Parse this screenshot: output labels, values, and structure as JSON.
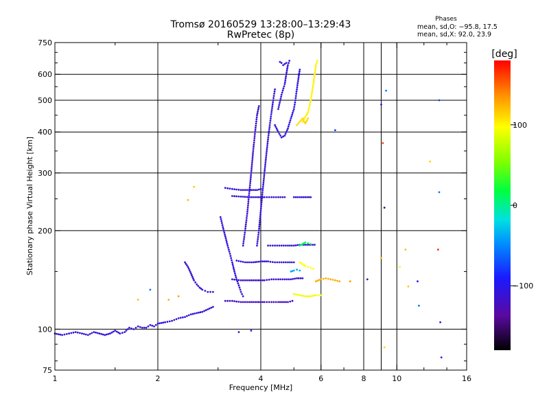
{
  "title_line1": "Tromsø 20160529 13:28:00–13:29:43",
  "title_line2": "RwPretec (8p)",
  "phases_box": {
    "heading": "Phases",
    "line_o": "mean, sd,O: −95.8, 17.5",
    "line_x": "mean, sd,X:  92.0, 23.9"
  },
  "colorbar": {
    "unit_label": "[deg]",
    "ticks": [
      {
        "value": 100,
        "label": "100"
      },
      {
        "value": 0,
        "label": "0"
      },
      {
        "value": -100,
        "label": "−100"
      }
    ],
    "range": [
      -180,
      180
    ]
  },
  "chart_data": {
    "type": "scatter",
    "xlabel": "Frequency [MHz]",
    "ylabel": "Stationary phase Virtual Height [km]",
    "xscale": "log",
    "yscale": "log",
    "xlim": [
      1,
      16
    ],
    "ylim": [
      75,
      750
    ],
    "grid": true,
    "x_ticks": [
      {
        "value": 1,
        "label": "1"
      },
      {
        "value": 2,
        "label": "2"
      },
      {
        "value": 4,
        "label": "4"
      },
      {
        "value": 6,
        "label": "6"
      },
      {
        "value": 8,
        "label": "8"
      },
      {
        "value": 9,
        "label": ""
      },
      {
        "value": 10,
        "label": "10"
      },
      {
        "value": 16,
        "label": "16"
      }
    ],
    "y_ticks": [
      {
        "value": 75,
        "label": "75"
      },
      {
        "value": 100,
        "label": "100"
      },
      {
        "value": 200,
        "label": "200"
      },
      {
        "value": 300,
        "label": "300"
      },
      {
        "value": 400,
        "label": "400"
      },
      {
        "value": 500,
        "label": "500"
      },
      {
        "value": 600,
        "label": "600"
      },
      {
        "value": 750,
        "label": "750"
      }
    ],
    "grid_x": [
      2,
      4,
      6,
      8,
      9,
      10
    ],
    "grid_y": [
      100,
      200,
      300,
      400,
      500,
      600
    ],
    "color_encoding": "phase_deg",
    "traces": [
      {
        "phase": -110,
        "points": [
          [
            1.0,
            97
          ],
          [
            1.05,
            96
          ],
          [
            1.1,
            97
          ],
          [
            1.15,
            98
          ],
          [
            1.2,
            97
          ],
          [
            1.25,
            96
          ],
          [
            1.3,
            98
          ],
          [
            1.35,
            97
          ],
          [
            1.4,
            96
          ],
          [
            1.45,
            97
          ],
          [
            1.5,
            99
          ],
          [
            1.55,
            97
          ],
          [
            1.6,
            98
          ],
          [
            1.65,
            101
          ],
          [
            1.7,
            100
          ],
          [
            1.75,
            102
          ],
          [
            1.8,
            101
          ],
          [
            1.85,
            101
          ],
          [
            1.9,
            103
          ],
          [
            1.95,
            102
          ],
          [
            2.0,
            104
          ],
          [
            2.1,
            105
          ],
          [
            2.2,
            106
          ],
          [
            2.3,
            108
          ],
          [
            2.4,
            109
          ],
          [
            2.5,
            111
          ],
          [
            2.6,
            112
          ],
          [
            2.7,
            113
          ],
          [
            2.8,
            115
          ],
          [
            2.9,
            117
          ]
        ]
      },
      {
        "phase": -115,
        "points": [
          [
            2.4,
            160
          ],
          [
            2.45,
            155
          ],
          [
            2.5,
            148
          ],
          [
            2.55,
            141
          ],
          [
            2.6,
            137
          ],
          [
            2.65,
            134
          ],
          [
            2.7,
            132
          ],
          [
            2.75,
            131
          ],
          [
            2.8,
            130
          ],
          [
            2.85,
            130
          ],
          [
            2.9,
            130
          ]
        ]
      },
      {
        "phase": -120,
        "points": [
          [
            3.15,
            122
          ],
          [
            3.3,
            122
          ],
          [
            3.5,
            121
          ],
          [
            3.7,
            121
          ],
          [
            3.9,
            121
          ],
          [
            4.1,
            121
          ],
          [
            4.3,
            121
          ],
          [
            4.5,
            121
          ],
          [
            4.8,
            121
          ],
          [
            4.95,
            122
          ]
        ]
      },
      {
        "phase": -115,
        "points": [
          [
            3.3,
            142
          ],
          [
            3.5,
            141
          ],
          [
            3.7,
            141
          ],
          [
            3.9,
            141
          ],
          [
            4.1,
            141
          ],
          [
            4.3,
            142
          ],
          [
            4.5,
            142
          ],
          [
            4.7,
            142
          ],
          [
            4.9,
            142
          ],
          [
            5.1,
            143
          ],
          [
            5.3,
            143
          ]
        ]
      },
      {
        "phase": -110,
        "points": [
          [
            3.4,
            162
          ],
          [
            3.6,
            160
          ],
          [
            3.8,
            160
          ],
          [
            4.0,
            161
          ],
          [
            4.2,
            161
          ],
          [
            4.4,
            160
          ],
          [
            4.6,
            160
          ],
          [
            4.8,
            160
          ],
          [
            5.0,
            160
          ]
        ]
      },
      {
        "phase": -110,
        "points": [
          [
            4.2,
            180
          ],
          [
            4.4,
            180
          ],
          [
            4.6,
            180
          ],
          [
            4.8,
            180
          ],
          [
            5.0,
            180
          ],
          [
            5.2,
            181
          ],
          [
            5.4,
            181
          ],
          [
            5.6,
            181
          ],
          [
            5.75,
            181
          ]
        ]
      },
      {
        "phase": -115,
        "points": [
          [
            3.3,
            255
          ],
          [
            3.5,
            254
          ],
          [
            3.7,
            253
          ],
          [
            3.9,
            253
          ],
          [
            4.1,
            253
          ],
          [
            4.3,
            253
          ],
          [
            4.5,
            253
          ],
          [
            4.7,
            253
          ]
        ]
      },
      {
        "phase": -110,
        "points": [
          [
            3.15,
            270
          ],
          [
            3.3,
            268
          ],
          [
            3.5,
            266
          ],
          [
            3.7,
            266
          ],
          [
            3.9,
            266
          ],
          [
            4.0,
            268
          ]
        ]
      },
      {
        "phase": -115,
        "points": [
          [
            5.0,
            253
          ],
          [
            5.2,
            253
          ],
          [
            5.4,
            253
          ],
          [
            5.6,
            253
          ]
        ]
      },
      {
        "phase": -110,
        "points": [
          [
            3.05,
            220
          ],
          [
            3.1,
            205
          ],
          [
            3.15,
            192
          ],
          [
            3.2,
            180
          ],
          [
            3.25,
            170
          ],
          [
            3.3,
            160
          ],
          [
            3.35,
            150
          ],
          [
            3.4,
            142
          ],
          [
            3.45,
            136
          ],
          [
            3.5,
            130
          ],
          [
            3.55,
            126
          ]
        ]
      },
      {
        "phase": -115,
        "points": [
          [
            3.55,
            180
          ],
          [
            3.6,
            200
          ],
          [
            3.65,
            225
          ],
          [
            3.7,
            260
          ],
          [
            3.75,
            300
          ],
          [
            3.8,
            350
          ],
          [
            3.85,
            400
          ],
          [
            3.9,
            450
          ],
          [
            3.95,
            480
          ]
        ]
      },
      {
        "phase": -110,
        "points": [
          [
            3.9,
            180
          ],
          [
            3.95,
            200
          ],
          [
            4.0,
            230
          ],
          [
            4.05,
            265
          ],
          [
            4.1,
            300
          ],
          [
            4.15,
            340
          ],
          [
            4.2,
            380
          ],
          [
            4.25,
            420
          ],
          [
            4.3,
            460
          ],
          [
            4.35,
            500
          ],
          [
            4.4,
            540
          ]
        ]
      },
      {
        "phase": -105,
        "points": [
          [
            4.4,
            420
          ],
          [
            4.5,
            400
          ],
          [
            4.6,
            385
          ],
          [
            4.7,
            390
          ],
          [
            4.8,
            410
          ],
          [
            4.9,
            440
          ],
          [
            5.0,
            470
          ],
          [
            5.05,
            500
          ],
          [
            5.1,
            540
          ],
          [
            5.15,
            580
          ],
          [
            5.2,
            620
          ]
        ]
      },
      {
        "phase": -110,
        "points": [
          [
            4.5,
            470
          ],
          [
            4.6,
            520
          ],
          [
            4.7,
            560
          ],
          [
            4.75,
            600
          ],
          [
            4.8,
            640
          ],
          [
            4.85,
            660
          ]
        ]
      },
      {
        "phase": -108,
        "points": [
          [
            4.55,
            655
          ],
          [
            4.6,
            650
          ],
          [
            4.65,
            640
          ],
          [
            4.7,
            645
          ],
          [
            4.75,
            650
          ]
        ]
      },
      {
        "phase": 100,
        "points": [
          [
            5.3,
            430
          ],
          [
            5.4,
            445
          ],
          [
            5.5,
            460
          ],
          [
            5.55,
            480
          ],
          [
            5.6,
            500
          ],
          [
            5.65,
            530
          ],
          [
            5.7,
            560
          ],
          [
            5.75,
            600
          ],
          [
            5.8,
            640
          ],
          [
            5.85,
            660
          ]
        ]
      },
      {
        "phase": 110,
        "points": [
          [
            5.1,
            420
          ],
          [
            5.2,
            430
          ],
          [
            5.3,
            440
          ],
          [
            5.4,
            425
          ],
          [
            5.5,
            440
          ]
        ]
      },
      {
        "phase": 95,
        "points": [
          [
            5.2,
            160
          ],
          [
            5.3,
            158
          ],
          [
            5.4,
            156
          ],
          [
            5.5,
            155
          ],
          [
            5.6,
            154
          ],
          [
            5.7,
            153
          ]
        ]
      },
      {
        "phase": 90,
        "points": [
          [
            5.0,
            128
          ],
          [
            5.2,
            127
          ],
          [
            5.4,
            126
          ],
          [
            5.6,
            126
          ],
          [
            5.8,
            127
          ],
          [
            6.0,
            127
          ]
        ]
      },
      {
        "phase": 125,
        "points": [
          [
            5.8,
            140
          ],
          [
            6.0,
            142
          ],
          [
            6.2,
            143
          ],
          [
            6.4,
            142
          ],
          [
            6.6,
            141
          ],
          [
            6.8,
            140
          ]
        ]
      },
      {
        "phase": 10,
        "points": [
          [
            5.2,
            180
          ],
          [
            5.3,
            182
          ],
          [
            5.4,
            184
          ],
          [
            5.5,
            183
          ],
          [
            5.6,
            182
          ]
        ]
      },
      {
        "phase": -40,
        "points": [
          [
            4.9,
            150
          ],
          [
            5.0,
            151
          ],
          [
            5.1,
            152
          ],
          [
            5.2,
            151
          ]
        ]
      }
    ],
    "scatter_points": [
      {
        "x": 1.75,
        "y": 123,
        "phase": 120
      },
      {
        "x": 1.9,
        "y": 132,
        "phase": -60
      },
      {
        "x": 2.15,
        "y": 123,
        "phase": 125
      },
      {
        "x": 2.3,
        "y": 126,
        "phase": 130
      },
      {
        "x": 2.45,
        "y": 248,
        "phase": 120
      },
      {
        "x": 2.55,
        "y": 272,
        "phase": 115
      },
      {
        "x": 3.45,
        "y": 98,
        "phase": -110
      },
      {
        "x": 3.75,
        "y": 99,
        "phase": -90
      },
      {
        "x": 6.6,
        "y": 405,
        "phase": -80
      },
      {
        "x": 9.0,
        "y": 485,
        "phase": -90
      },
      {
        "x": 9.3,
        "y": 535,
        "phase": -60
      },
      {
        "x": 9.1,
        "y": 370,
        "phase": 160
      },
      {
        "x": 9.2,
        "y": 235,
        "phase": -150
      },
      {
        "x": 9.0,
        "y": 165,
        "phase": 120
      },
      {
        "x": 9.2,
        "y": 88,
        "phase": 110
      },
      {
        "x": 10.6,
        "y": 175,
        "phase": 120
      },
      {
        "x": 10.8,
        "y": 135,
        "phase": 115
      },
      {
        "x": 11.5,
        "y": 140,
        "phase": -100
      },
      {
        "x": 11.6,
        "y": 118,
        "phase": -60
      },
      {
        "x": 12.5,
        "y": 325,
        "phase": 110
      },
      {
        "x": 13.2,
        "y": 175,
        "phase": 170
      },
      {
        "x": 13.4,
        "y": 105,
        "phase": -100
      },
      {
        "x": 13.5,
        "y": 82,
        "phase": -90
      },
      {
        "x": 13.3,
        "y": 262,
        "phase": -60
      },
      {
        "x": 13.3,
        "y": 500,
        "phase": -80
      },
      {
        "x": 8.2,
        "y": 142,
        "phase": -130
      },
      {
        "x": 7.3,
        "y": 140,
        "phase": 130
      },
      {
        "x": 10.2,
        "y": 155,
        "phase": 90
      }
    ]
  }
}
